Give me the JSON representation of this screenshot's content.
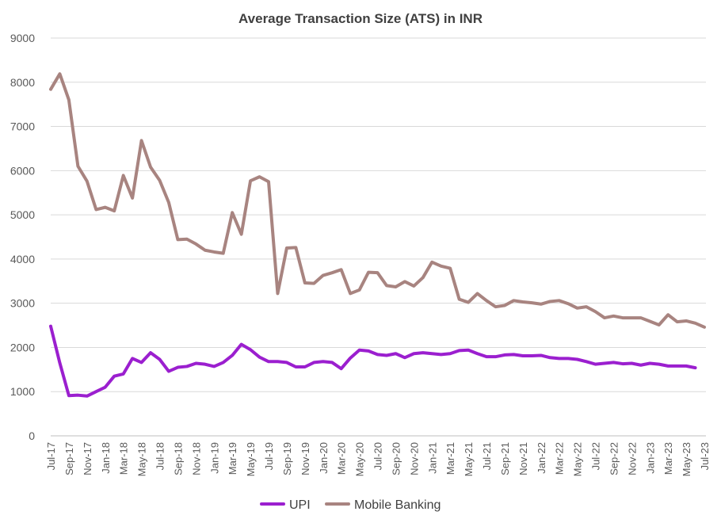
{
  "chart_data": {
    "type": "line",
    "title": "Average Transaction Size (ATS) in INR",
    "xlabel": "",
    "ylabel": "",
    "ylim": [
      0,
      9000
    ],
    "yticks": [
      0,
      1000,
      2000,
      3000,
      4000,
      5000,
      6000,
      7000,
      8000,
      9000
    ],
    "grid": true,
    "legend_position": "bottom",
    "categories": [
      "Jul-17",
      "Aug-17",
      "Sep-17",
      "Oct-17",
      "Nov-17",
      "Dec-17",
      "Jan-18",
      "Feb-18",
      "Mar-18",
      "Apr-18",
      "May-18",
      "Jun-18",
      "Jul-18",
      "Aug-18",
      "Sep-18",
      "Oct-18",
      "Nov-18",
      "Dec-18",
      "Jan-19",
      "Feb-19",
      "Mar-19",
      "Apr-19",
      "May-19",
      "Jun-19",
      "Jul-19",
      "Aug-19",
      "Sep-19",
      "Oct-19",
      "Nov-19",
      "Dec-19",
      "Jan-20",
      "Feb-20",
      "Mar-20",
      "Apr-20",
      "May-20",
      "Jun-20",
      "Jul-20",
      "Aug-20",
      "Sep-20",
      "Oct-20",
      "Nov-20",
      "Dec-20",
      "Jan-21",
      "Feb-21",
      "Mar-21",
      "Apr-21",
      "May-21",
      "Jun-21",
      "Jul-21",
      "Aug-21",
      "Sep-21",
      "Oct-21",
      "Nov-21",
      "Dec-21",
      "Jan-22",
      "Feb-22",
      "Mar-22",
      "Apr-22",
      "May-22",
      "Jun-22",
      "Jul-22",
      "Aug-22",
      "Sep-22",
      "Oct-22",
      "Nov-22",
      "Dec-22",
      "Jan-23",
      "Feb-23",
      "Mar-23",
      "Apr-23",
      "May-23",
      "Jun-23",
      "Jul-23"
    ],
    "tick_labels": [
      "Jul-17",
      "Sep-17",
      "Nov-17",
      "Jan-18",
      "Mar-18",
      "May-18",
      "Jul-18",
      "Sep-18",
      "Nov-18",
      "Jan-19",
      "Mar-19",
      "May-19",
      "Jul-19",
      "Sep-19",
      "Nov-19",
      "Jan-20",
      "Mar-20",
      "May-20",
      "Jul-20",
      "Sep-20",
      "Nov-20",
      "Jan-21",
      "Mar-21",
      "May-21",
      "Jul-21",
      "Sep-21",
      "Nov-21",
      "Jan-22",
      "Mar-22",
      "May-22",
      "Jul-22",
      "Sep-22",
      "Nov-22",
      "Jan-23",
      "Mar-23",
      "May-23",
      "Jul-23"
    ],
    "series": [
      {
        "name": "UPI",
        "color": "#9b1fcf",
        "values": [
          2480,
          1650,
          910,
          920,
          900,
          1000,
          1100,
          1350,
          1400,
          1750,
          1660,
          1880,
          1730,
          1460,
          1550,
          1570,
          1640,
          1620,
          1570,
          1660,
          1820,
          2070,
          1950,
          1780,
          1680,
          1680,
          1660,
          1560,
          1560,
          1660,
          1680,
          1660,
          1520,
          1760,
          1940,
          1920,
          1840,
          1820,
          1860,
          1770,
          1860,
          1880,
          1860,
          1840,
          1860,
          1930,
          1940,
          1860,
          1790,
          1790,
          1830,
          1840,
          1810,
          1810,
          1820,
          1770,
          1750,
          1750,
          1730,
          1680,
          1620,
          1640,
          1660,
          1630,
          1640,
          1600,
          1640,
          1620,
          1580,
          1580,
          1580,
          1540,
          null
        ],
        "values_note": "UPI series ends at Jun-23"
      },
      {
        "name": "Mobile Banking",
        "color": "#a88480",
        "values": [
          7840,
          8190,
          7600,
          6100,
          5760,
          5120,
          5170,
          5090,
          5890,
          5380,
          6680,
          6080,
          5780,
          5280,
          4440,
          4450,
          4340,
          4200,
          4160,
          4130,
          5050,
          4560,
          5770,
          5860,
          5750,
          3220,
          4250,
          4260,
          3460,
          3450,
          3630,
          3690,
          3760,
          3220,
          3300,
          3700,
          3690,
          3400,
          3370,
          3490,
          3390,
          3580,
          3930,
          3840,
          3790,
          3090,
          3020,
          3220,
          3060,
          2920,
          2950,
          3060,
          3030,
          3010,
          2980,
          3040,
          3060,
          2990,
          2890,
          2920,
          2810,
          2670,
          2710,
          2670,
          2670,
          2670,
          2590,
          2510,
          2740,
          2580,
          2600,
          2550,
          2460
        ]
      }
    ]
  }
}
